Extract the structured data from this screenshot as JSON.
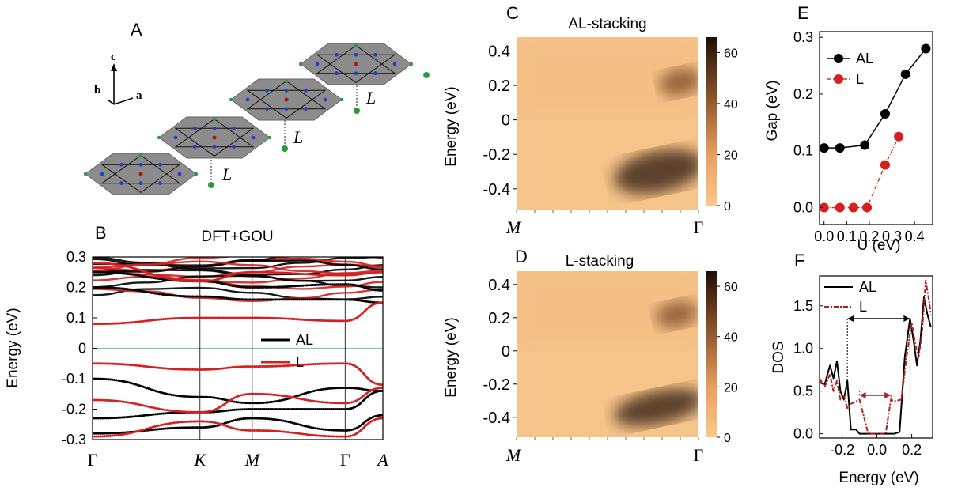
{
  "panel_labels": {
    "a": "A",
    "b": "B",
    "c": "C",
    "d": "D",
    "e": "E",
    "f": "F"
  },
  "lattice": {
    "axis_c": "c",
    "axis_b": "b",
    "axis_a": "a",
    "spacing_label": "L"
  },
  "colors": {
    "AL": "#000000",
    "L": "#d42020",
    "fermi": "#8ab8d0",
    "layer_face": "#8c8c8c"
  },
  "chart_data": [
    {
      "id": "B",
      "type": "line",
      "title": "DFT+GOU",
      "ylabel": "Energy (eV)",
      "ylim": [
        -0.3,
        0.3
      ],
      "yticks": [
        "0.3",
        "0.2",
        "0.1",
        "0",
        "-0.1",
        "-0.2",
        "-0.3"
      ],
      "kpoints": [
        "Γ",
        "K",
        "M",
        "Γ",
        "A"
      ],
      "kpoint_positions": [
        0,
        0.37,
        0.55,
        0.87,
        1.0
      ],
      "fermi_level": 0,
      "legend": [
        "AL",
        "L"
      ],
      "series": [
        {
          "name": "AL",
          "bands": [
            {
              "x": [
                0,
                0.37,
                0.55,
                0.87,
                1.0
              ],
              "y": [
                0.2,
                0.17,
                0.16,
                0.16,
                0.15
              ]
            },
            {
              "x": [
                0,
                0.37,
                0.55,
                0.87,
                1.0
              ],
              "y": [
                0.25,
                0.22,
                0.2,
                0.21,
                0.19
              ]
            },
            {
              "x": [
                0,
                0.37,
                0.55,
                0.87,
                1.0
              ],
              "y": [
                -0.1,
                -0.16,
                -0.18,
                -0.13,
                -0.14
              ]
            },
            {
              "x": [
                0,
                0.37,
                0.55,
                0.87,
                1.0
              ],
              "y": [
                -0.23,
                -0.21,
                -0.2,
                -0.2,
                -0.14
              ]
            },
            {
              "x": [
                0,
                0.37,
                0.55,
                0.87,
                1.0
              ],
              "y": [
                -0.28,
                -0.26,
                -0.23,
                -0.27,
                -0.22
              ]
            }
          ]
        },
        {
          "name": "L",
          "bands": [
            {
              "x": [
                0,
                0.37,
                0.55,
                0.87,
                1.0
              ],
              "y": [
                0.08,
                0.1,
                0.1,
                0.09,
                0.15
              ]
            },
            {
              "x": [
                0,
                0.37,
                0.55,
                0.87,
                1.0
              ],
              "y": [
                0.28,
                0.22,
                0.25,
                0.24,
                0.25
              ]
            },
            {
              "x": [
                0,
                0.37,
                0.55,
                0.87,
                1.0
              ],
              "y": [
                -0.05,
                -0.07,
                -0.06,
                -0.05,
                -0.12
              ]
            },
            {
              "x": [
                0,
                0.37,
                0.55,
                0.87,
                1.0
              ],
              "y": [
                -0.17,
                -0.21,
                -0.15,
                -0.18,
                -0.13
              ]
            },
            {
              "x": [
                0,
                0.37,
                0.55,
                0.87,
                1.0
              ],
              "y": [
                -0.29,
                -0.24,
                -0.27,
                -0.29,
                -0.23
              ]
            }
          ]
        }
      ]
    },
    {
      "id": "C",
      "type": "heatmap",
      "title": "AL-stacking",
      "ylabel": "Energy (eV)",
      "ylim": [
        -0.52,
        0.48
      ],
      "yticks": [
        "0.4",
        "0.2",
        "0",
        "-0.2",
        "-0.4"
      ],
      "xticks": [
        "M",
        "Γ"
      ],
      "colorbar": {
        "range": [
          0,
          66
        ],
        "ticks": [
          "60",
          "40",
          "20",
          "0"
        ]
      },
      "features": [
        {
          "cx": 0.78,
          "cy": -0.3,
          "rx": 0.25,
          "ry": 0.12,
          "value": 55
        },
        {
          "cx": 0.9,
          "cy": 0.22,
          "rx": 0.12,
          "ry": 0.08,
          "value": 30
        }
      ]
    },
    {
      "id": "D",
      "type": "heatmap",
      "title": "L-stacking",
      "ylabel": "Energy (eV)",
      "ylim": [
        -0.52,
        0.48
      ],
      "yticks": [
        "0.4",
        "0.2",
        "0",
        "-0.2",
        "-0.4"
      ],
      "xticks": [
        "M",
        "Γ"
      ],
      "colorbar": {
        "range": [
          0,
          66
        ],
        "ticks": [
          "60",
          "40",
          "20",
          "0"
        ]
      },
      "features": [
        {
          "cx": 0.78,
          "cy": -0.34,
          "rx": 0.25,
          "ry": 0.1,
          "value": 50
        },
        {
          "cx": 0.88,
          "cy": 0.22,
          "rx": 0.12,
          "ry": 0.08,
          "value": 35
        }
      ]
    },
    {
      "id": "E",
      "type": "line",
      "xlabel": "U (eV)",
      "ylabel": "Gap (eV)",
      "xlim": [
        -0.02,
        0.48
      ],
      "ylim": [
        -0.03,
        0.31
      ],
      "xticks": [
        "0.0",
        "0.1",
        "0.2",
        "0.3",
        "0.4"
      ],
      "yticks": [
        "0.3",
        "0.2",
        "0.1",
        "0.0"
      ],
      "legend": [
        "AL",
        "L"
      ],
      "series": [
        {
          "name": "AL",
          "x": [
            0.0,
            0.07,
            0.18,
            0.27,
            0.36,
            0.45
          ],
          "y": [
            0.105,
            0.105,
            0.11,
            0.165,
            0.235,
            0.28
          ]
        },
        {
          "name": "L",
          "x": [
            0.0,
            0.07,
            0.13,
            0.19,
            0.27,
            0.33
          ],
          "y": [
            0.0,
            0.0,
            0.0,
            0.0,
            0.075,
            0.125
          ]
        }
      ]
    },
    {
      "id": "F",
      "type": "line",
      "xlabel": "Energy (eV)",
      "ylabel": "DOS",
      "xlim": [
        -0.33,
        0.32
      ],
      "ylim": [
        -0.05,
        1.85
      ],
      "xticks": [
        "-0.2",
        "0.0",
        "0.2"
      ],
      "yticks": [
        "1.5",
        "1.0",
        "0.5",
        "0.0"
      ],
      "legend": [
        "AL",
        "L"
      ],
      "series": [
        {
          "name": "AL",
          "x": [
            -0.33,
            -0.3,
            -0.27,
            -0.25,
            -0.23,
            -0.21,
            -0.19,
            -0.17,
            -0.15,
            -0.12,
            -0.1,
            0.1,
            0.13,
            0.16,
            0.19,
            0.21,
            0.23,
            0.25,
            0.27,
            0.29,
            0.31
          ],
          "y": [
            0.6,
            0.58,
            0.8,
            0.65,
            0.85,
            0.5,
            0.4,
            0.62,
            0.05,
            0.05,
            0.0,
            0.0,
            0.02,
            0.9,
            1.35,
            1.1,
            0.8,
            1.1,
            1.6,
            1.4,
            1.25
          ]
        },
        {
          "name": "L",
          "x": [
            -0.33,
            -0.3,
            -0.27,
            -0.25,
            -0.23,
            -0.21,
            -0.19,
            -0.17,
            -0.15,
            -0.1,
            -0.05,
            0.0,
            0.05,
            0.08,
            0.1,
            0.14,
            0.17,
            0.2,
            0.22,
            0.24,
            0.26,
            0.28,
            0.3,
            0.31
          ],
          "y": [
            0.65,
            0.55,
            0.7,
            0.5,
            0.62,
            0.4,
            0.45,
            0.3,
            0.35,
            0.4,
            0.0,
            0.0,
            0.0,
            0.4,
            0.38,
            0.4,
            0.9,
            1.3,
            1.05,
            0.9,
            1.2,
            1.8,
            1.55,
            1.4
          ]
        }
      ],
      "gap_arrows": [
        {
          "series": "AL",
          "x1": -0.17,
          "x2": 0.19,
          "y": 1.35
        },
        {
          "series": "L",
          "x1": -0.1,
          "x2": 0.08,
          "y": 0.45
        }
      ]
    }
  ]
}
